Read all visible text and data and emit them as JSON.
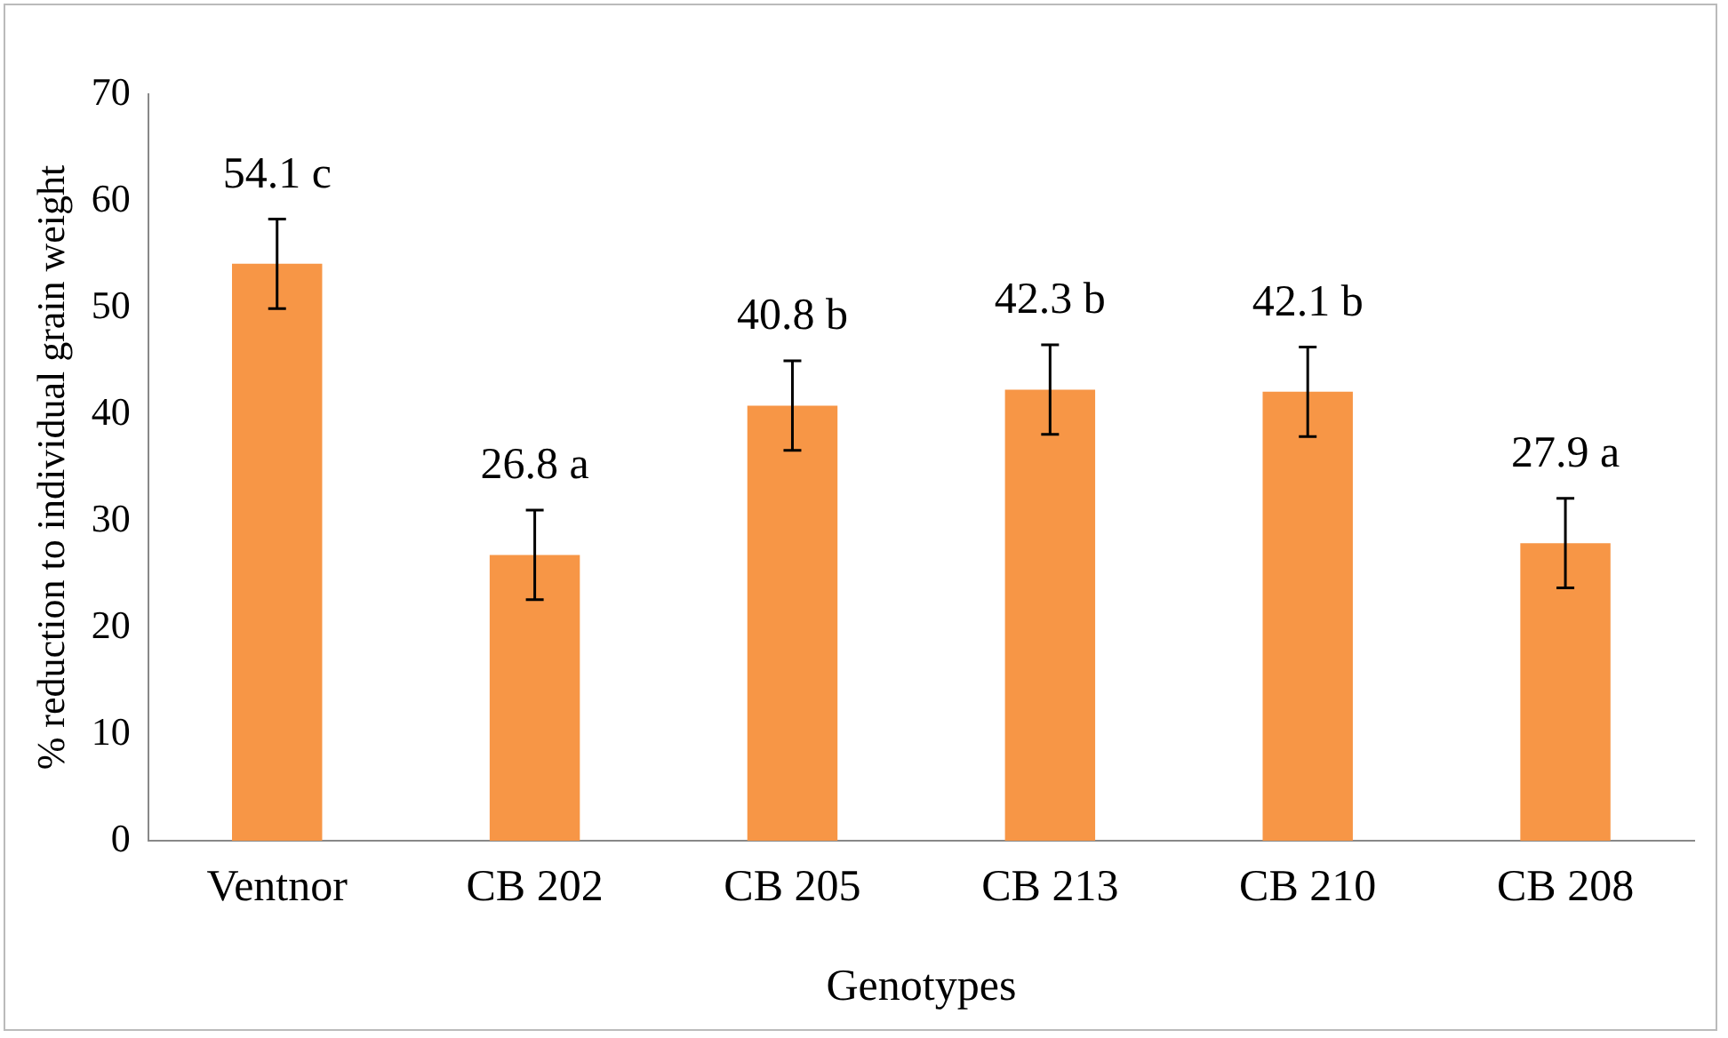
{
  "chart_data": {
    "type": "bar",
    "xlabel": "Genotypes",
    "ylabel": "% reduction to individual grain weight",
    "categories": [
      "Ventnor",
      "CB 202",
      "CB 205",
      "CB 213",
      "CB 210",
      "CB 208"
    ],
    "values": [
      54.1,
      26.8,
      40.8,
      42.3,
      42.1,
      27.9
    ],
    "errors": [
      4.2,
      4.2,
      4.2,
      4.2,
      4.2,
      4.2
    ],
    "value_labels": [
      "54.1 c",
      "26.8 a",
      "40.8 b",
      "42.3 b",
      "42.1 b",
      "27.9 a"
    ],
    "color": "#f79646",
    "ylim": [
      0,
      70
    ],
    "yticks": [
      0,
      10,
      20,
      30,
      40,
      50,
      60,
      70
    ],
    "grid": false,
    "legend": false
  }
}
